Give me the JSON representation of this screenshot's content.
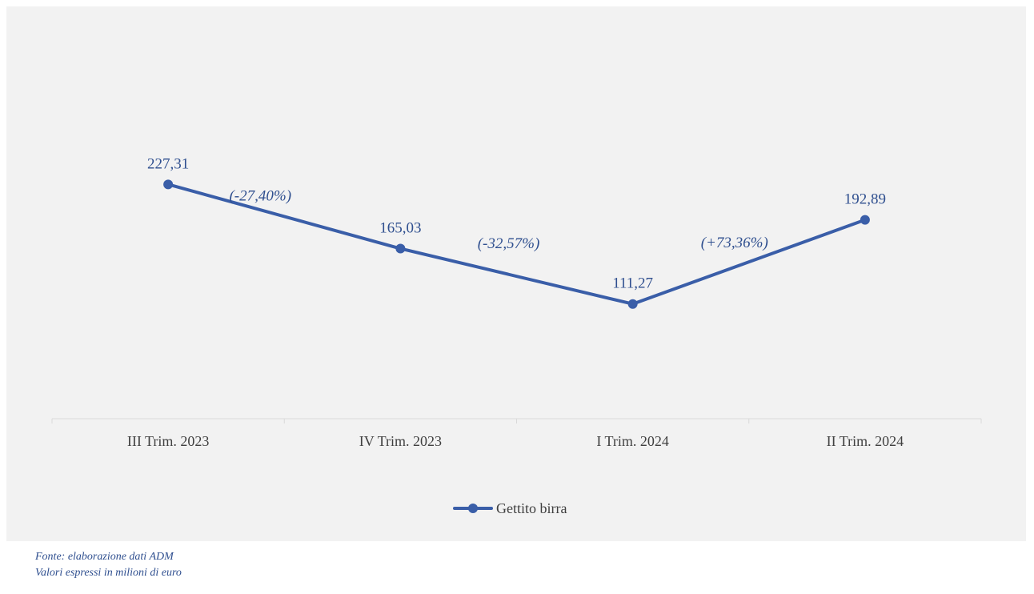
{
  "chart_data": {
    "type": "line",
    "categories": [
      "III Trim. 2023",
      "IV Trim. 2023",
      "I Trim. 2024",
      "II Trim. 2024"
    ],
    "series": [
      {
        "name": "Gettito birra",
        "values": [
          227.31,
          165.03,
          111.27,
          192.89
        ],
        "value_labels": [
          "227,31",
          "165,03",
          "111,27",
          "192,89"
        ],
        "color": "#3a5ea8"
      }
    ],
    "change_labels": [
      "(-27,40%)",
      "(-32,57%)",
      "(+73,36%)"
    ],
    "title": "",
    "xlabel": "",
    "ylabel": "",
    "ylim": [
      0,
      400
    ],
    "grid": false,
    "legend": "bottom-center",
    "y_axis_visible": false
  },
  "footnotes": {
    "source": "Fonte: elaborazione dati ADM",
    "units": "Valori espressi in milioni di euro"
  },
  "colors": {
    "background": "#f2f2f2",
    "line": "#3a5ea8",
    "label_text": "#2f4f8f",
    "axis": "#d9d9d9",
    "tick_text": "#404040"
  }
}
